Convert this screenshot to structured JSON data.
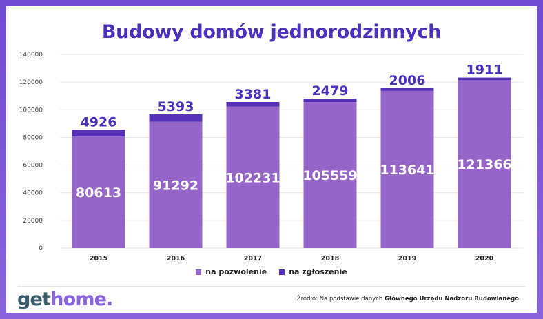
{
  "title": "Budowy domów jednorodzinnych",
  "colors": {
    "na_pozwolenie": "#9565c7",
    "na_zgloszenie": "#5431b6",
    "title": "#4d2fbd",
    "label_top": "#4d2fbd"
  },
  "legend": {
    "item1": "na pozwolenie",
    "item2": "na zgłoszenie"
  },
  "logo": {
    "part1": "get",
    "part2": "home."
  },
  "source": {
    "prefix": "Źródło: Na podstawie danych ",
    "bold": "Głównego Urzędu Nadzoru Budowlanego"
  },
  "chart_data": {
    "type": "bar",
    "stacked": true,
    "categories": [
      "2015",
      "2016",
      "2017",
      "2018",
      "2019",
      "2020"
    ],
    "series": [
      {
        "name": "na pozwolenie",
        "values": [
          80613,
          91292,
          102231,
          105559,
          113641,
          121366
        ]
      },
      {
        "name": "na zgłoszenie",
        "values": [
          4926,
          5393,
          3381,
          2479,
          2006,
          1911
        ]
      }
    ],
    "yticks": [
      0,
      20000,
      40000,
      60000,
      80000,
      100000,
      120000,
      140000
    ],
    "ylim": [
      0,
      140000
    ],
    "grid": true,
    "legend_position": "bottom"
  }
}
